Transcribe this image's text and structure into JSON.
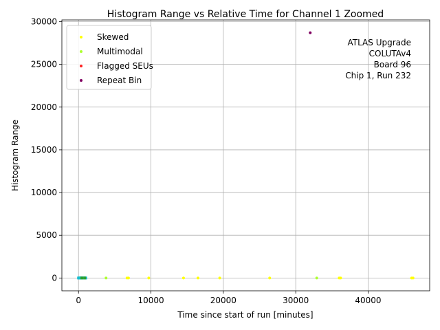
{
  "chart_data": {
    "type": "scatter",
    "title": "Histogram Range vs Relative Time for Channel 1 Zoomed",
    "xlabel": "Time since start of run [minutes]",
    "ylabel": "Histogram Range",
    "xlim": [
      -2300,
      48500
    ],
    "ylim": [
      -1500,
      30200
    ],
    "x_ticks": [
      0,
      10000,
      20000,
      30000,
      40000
    ],
    "y_ticks": [
      0,
      5000,
      10000,
      15000,
      20000,
      25000,
      30000
    ],
    "grid": true,
    "legend_position": "upper-left",
    "annotation_lines": [
      "ATLAS Upgrade",
      "COLUTAv4",
      "Board 96",
      "Chip 1, Run 232"
    ],
    "series": [
      {
        "name": "Skewed",
        "color": "#ffff00",
        "points": [
          [
            150,
            0
          ],
          [
            300,
            0
          ],
          [
            500,
            0
          ],
          [
            650,
            0
          ],
          [
            6700,
            0
          ],
          [
            6900,
            0
          ],
          [
            9700,
            0
          ],
          [
            14500,
            0
          ],
          [
            16500,
            0
          ],
          [
            19500,
            0
          ],
          [
            26400,
            0
          ],
          [
            36000,
            0
          ],
          [
            36200,
            0
          ],
          [
            46000,
            0
          ],
          [
            46200,
            0
          ]
        ]
      },
      {
        "name": "Multimodal",
        "color": "#adff2f",
        "points": [
          [
            100,
            0
          ],
          [
            700,
            0
          ],
          [
            3800,
            0
          ],
          [
            32900,
            0
          ]
        ]
      },
      {
        "name": "Flagged SEUs",
        "color": "#ff2020",
        "points": [
          [
            250,
            0
          ],
          [
            400,
            0
          ]
        ]
      },
      {
        "name": "Repeat Bin",
        "color": "#800060",
        "points": [
          [
            32000,
            28700
          ]
        ]
      },
      {
        "name": "",
        "color": "#17becf",
        "marker": "square",
        "points": [
          [
            0,
            0
          ],
          [
            100,
            0
          ],
          [
            200,
            0
          ],
          [
            300,
            0
          ],
          [
            400,
            0
          ],
          [
            500,
            0
          ],
          [
            600,
            0
          ],
          [
            700,
            0
          ],
          [
            800,
            0
          ],
          [
            900,
            0
          ],
          [
            1000,
            0
          ]
        ]
      },
      {
        "name": "",
        "color": "#2ca02c",
        "marker": "square",
        "points": [
          [
            450,
            0
          ],
          [
            850,
            0
          ]
        ]
      }
    ]
  }
}
